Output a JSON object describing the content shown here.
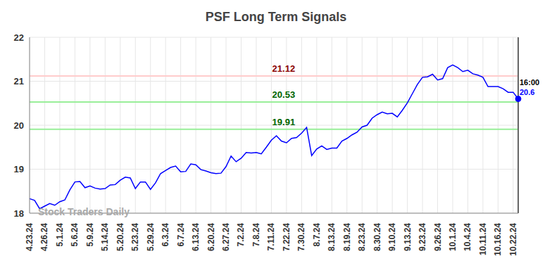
{
  "chart_data": {
    "type": "line",
    "title": "PSF Long Term Signals",
    "categories": [
      "4.23.24",
      null,
      null,
      "4.26.24",
      null,
      null,
      "5.1.24",
      null,
      null,
      "5.6.24",
      null,
      null,
      "5.9.24",
      null,
      null,
      "5.14.24",
      null,
      null,
      "5.20.24",
      null,
      null,
      "5.23.24",
      null,
      null,
      "5.29.24",
      null,
      null,
      "6.3.24",
      null,
      null,
      "6.7.24",
      null,
      null,
      "6.13.24",
      null,
      null,
      "6.20.24",
      null,
      null,
      "6.27.24",
      null,
      null,
      "7.2.24",
      null,
      null,
      "7.8.24",
      null,
      null,
      "7.11.24",
      null,
      null,
      "7.22.24",
      null,
      null,
      "7.30.24",
      null,
      null,
      "8.7.24",
      null,
      null,
      "8.13.24",
      null,
      null,
      "8.19.24",
      null,
      null,
      "8.23.24",
      null,
      null,
      "8.30.24",
      null,
      null,
      "9.10.24",
      null,
      null,
      "9.13.24",
      null,
      null,
      "9.23.24",
      null,
      null,
      "9.26.24",
      null,
      null,
      "10.1.24",
      null,
      null,
      "10.4.24",
      null,
      null,
      "10.11.24",
      null,
      null,
      "10.16.24",
      null,
      null,
      "10.22.24",
      null
    ],
    "values": [
      18.33,
      18.29,
      18.1,
      18.16,
      18.22,
      18.18,
      18.26,
      18.3,
      18.53,
      18.71,
      18.72,
      18.58,
      18.62,
      18.57,
      18.55,
      18.56,
      18.64,
      18.65,
      18.75,
      18.82,
      18.8,
      18.56,
      18.71,
      18.71,
      18.54,
      18.69,
      18.9,
      18.97,
      19.04,
      19.07,
      18.94,
      18.95,
      19.12,
      19.1,
      18.99,
      18.96,
      18.92,
      18.9,
      18.91,
      19.06,
      19.3,
      19.17,
      19.25,
      19.38,
      19.37,
      19.38,
      19.35,
      19.5,
      19.66,
      19.76,
      19.64,
      19.6,
      19.7,
      19.72,
      19.82,
      19.95,
      19.31,
      19.46,
      19.53,
      19.45,
      19.48,
      19.48,
      19.64,
      19.7,
      19.78,
      19.84,
      19.96,
      20.0,
      20.16,
      20.24,
      20.3,
      20.26,
      20.27,
      20.19,
      20.34,
      20.51,
      20.72,
      20.93,
      21.09,
      21.1,
      21.16,
      21.03,
      21.06,
      21.31,
      21.37,
      21.31,
      21.22,
      21.25,
      21.17,
      21.14,
      21.09,
      20.88,
      20.88,
      20.88,
      20.83,
      20.75,
      20.75,
      20.6
    ],
    "color": "#0000ff",
    "ylim": [
      18,
      22
    ],
    "yticks": [
      18,
      19,
      20,
      21,
      22
    ],
    "grid": true,
    "reference_lines": [
      {
        "value": 21.12,
        "color": "#ffcccc"
      },
      {
        "value": 20.53,
        "color": "#99ee99"
      },
      {
        "value": 19.91,
        "color": "#99ee99"
      }
    ],
    "annotations": [
      "16:00"
    ],
    "watermark": "Stock Traders Daily"
  }
}
